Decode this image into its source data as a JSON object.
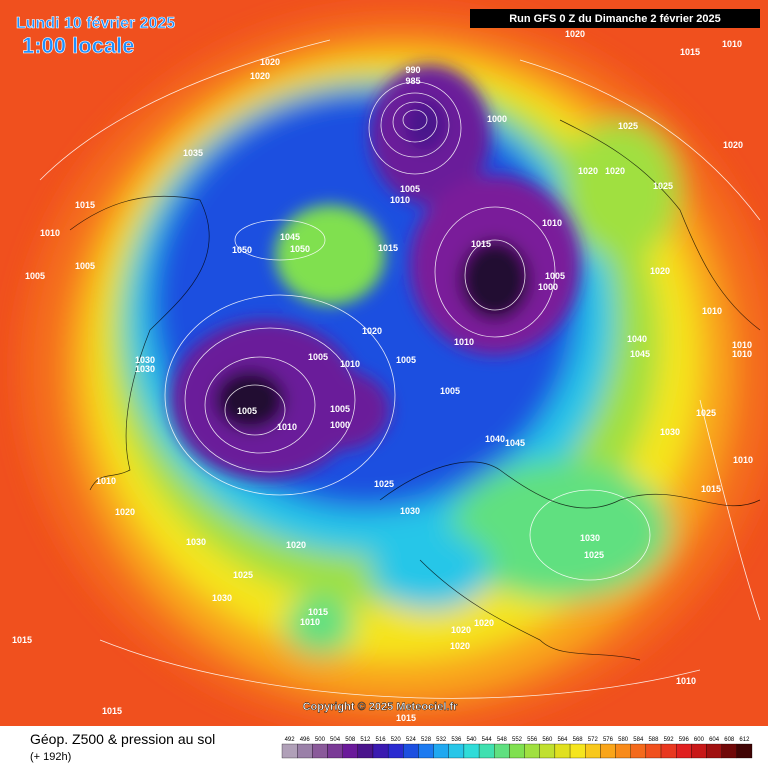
{
  "header": {
    "date": "Lundi 10 février 2025",
    "time": "1:00 locale",
    "run": "Run GFS 0 Z du Dimanche 2 février 2025"
  },
  "footer": {
    "title": "Géop. Z500 & pression au sol",
    "lead": "(+ 192h)",
    "copyright": "Copyright © 2025 Meteociel.fr"
  },
  "colorbar": {
    "values": [
      492,
      496,
      500,
      504,
      508,
      512,
      516,
      520,
      524,
      528,
      532,
      536,
      540,
      544,
      548,
      552,
      556,
      560,
      564,
      568,
      572,
      576,
      580,
      584,
      588,
      592,
      596,
      600,
      604,
      608,
      612
    ],
    "colors": [
      "#b0a0b8",
      "#9a80a8",
      "#8a5a9a",
      "#7a3a96",
      "#6a1a9a",
      "#4a148c",
      "#3a1ab0",
      "#2a2ad0",
      "#1c4fe0",
      "#1c7af0",
      "#20a8f0",
      "#28c6e8",
      "#30dcd8",
      "#40e0b0",
      "#60e080",
      "#80e050",
      "#a0e040",
      "#c0e030",
      "#e0e020",
      "#f5e51e",
      "#f8c81c",
      "#f9a51a",
      "#f88a1a",
      "#f46a1c",
      "#f0501e",
      "#e83820",
      "#e02020",
      "#c81818",
      "#a01010",
      "#700808",
      "#400404"
    ]
  },
  "isobar_labels": [
    1020,
    1015,
    1010,
    1020,
    1020,
    990,
    985,
    1000,
    1005,
    1010,
    1020,
    1020,
    1025,
    1025,
    1020,
    1035,
    1015,
    1010,
    1005,
    1005,
    1050,
    1050,
    1045,
    1015,
    1010,
    1005,
    1000,
    1015,
    1020,
    1010,
    1040,
    1045,
    1010,
    1010,
    1020,
    1010,
    1005,
    1010,
    1005,
    1030,
    1030,
    1005,
    1010,
    1005,
    1000,
    1005,
    1025,
    1030,
    1010,
    1015,
    1045,
    1040,
    1025,
    1030,
    1010,
    1020,
    1030,
    1020,
    1025,
    1030,
    1030,
    1025,
    1015,
    1010,
    1020,
    1020,
    1020,
    1010,
    1015,
    1015,
    1015
  ]
}
